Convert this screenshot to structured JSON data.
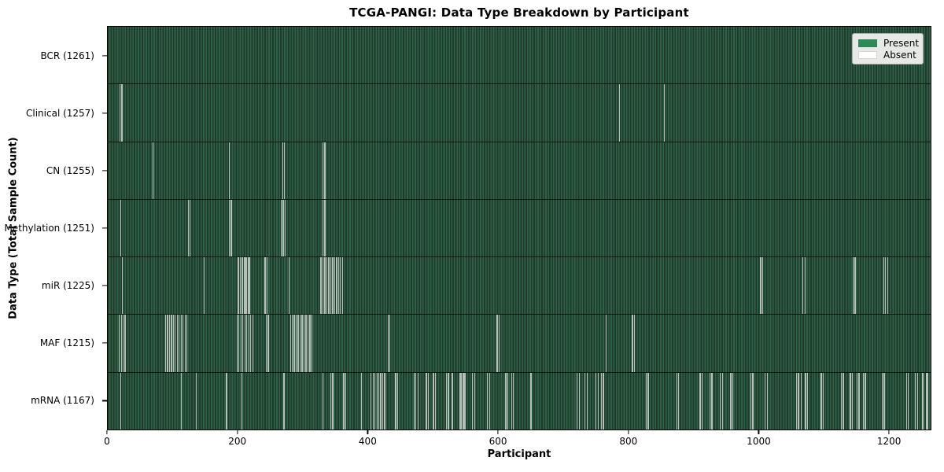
{
  "chart_data": {
    "type": "heatmap",
    "title": "TCGA-PANGI: Data Type Breakdown by Participant",
    "xlabel": "Participant",
    "ylabel": "Data Type (Total Sample Count)",
    "xlim": [
      0,
      1265
    ],
    "x_ticks": [
      0,
      200,
      400,
      600,
      800,
      1000,
      1200
    ],
    "x_tick_labels": [
      "0",
      "200",
      "400",
      "600",
      "800",
      "1000",
      "1200"
    ],
    "grid": false,
    "legend": {
      "position": "upper right",
      "entries": [
        {
          "label": "Present",
          "color": "#2e8b57"
        },
        {
          "label": "Absent",
          "color": "#ffffff"
        }
      ]
    },
    "total_participants": 1261,
    "rows": [
      {
        "name": "BCR",
        "label": "BCR (1261)",
        "count": 1261,
        "absent": []
      },
      {
        "name": "Clinical",
        "label": "Clinical (1257)",
        "count": 1257,
        "absent": [
          18,
          21,
          786,
          855
        ]
      },
      {
        "name": "CN",
        "label": "CN (1255)",
        "count": 1255,
        "absent": [
          69,
          186,
          268,
          271,
          330,
          333
        ]
      },
      {
        "name": "Methylation",
        "label": "Methylation (1251)",
        "count": 1251,
        "absent": [
          19,
          123,
          126,
          186,
          189,
          266,
          269,
          272,
          330,
          333
        ]
      },
      {
        "name": "miR",
        "label": "miR (1225)",
        "count": 1225,
        "absent": [
          22,
          147,
          199,
          201,
          203,
          205,
          207,
          209,
          211,
          213,
          215,
          217,
          241,
          244,
          278,
          327,
          330,
          333,
          336,
          339,
          342,
          345,
          348,
          351,
          354,
          357,
          360,
          1003,
          1006,
          1068,
          1071,
          1145,
          1148,
          1192,
          1195,
          1198
        ]
      },
      {
        "name": "MAF",
        "label": "MAF (1215)",
        "count": 1215,
        "absent": [
          17,
          20,
          23,
          26,
          88,
          91,
          94,
          97,
          100,
          103,
          106,
          109,
          112,
          115,
          118,
          121,
          198,
          201,
          204,
          207,
          210,
          213,
          216,
          219,
          222,
          243,
          246,
          280,
          283,
          286,
          289,
          292,
          295,
          298,
          301,
          304,
          307,
          310,
          313,
          430,
          433,
          598,
          601,
          765,
          806,
          809
        ]
      },
      {
        "name": "mRNA",
        "label": "mRNA (1167)",
        "count": 1167,
        "absent": [
          19,
          112,
          135,
          182,
          205,
          270,
          330,
          342,
          345,
          362,
          365,
          389,
          404,
          407,
          410,
          413,
          416,
          419,
          422,
          425,
          442,
          445,
          470,
          473,
          476,
          489,
          492,
          500,
          503,
          520,
          523,
          529,
          541,
          543,
          545,
          547,
          549,
          560,
          563,
          583,
          586,
          611,
          614,
          620,
          623,
          650,
          721,
          724,
          733,
          736,
          750,
          753,
          758,
          761,
          827,
          830,
          874,
          877,
          910,
          913,
          925,
          928,
          941,
          944,
          957,
          960,
          988,
          991,
          1010,
          1013,
          1058,
          1061,
          1065,
          1072,
          1075,
          1096,
          1099,
          1127,
          1130,
          1141,
          1144,
          1151,
          1154,
          1161,
          1164,
          1190,
          1193,
          1227,
          1230,
          1241,
          1244,
          1252,
          1258,
          1260
        ]
      }
    ],
    "colors": {
      "present": "#2e8b57",
      "absent": "#ffffff",
      "bar_fill_light": "#2f6147",
      "bar_edge_dark": "#1e3b2b",
      "absent_gap_line": "#b6c0b8",
      "legend_background": "#e7e9e6"
    }
  }
}
